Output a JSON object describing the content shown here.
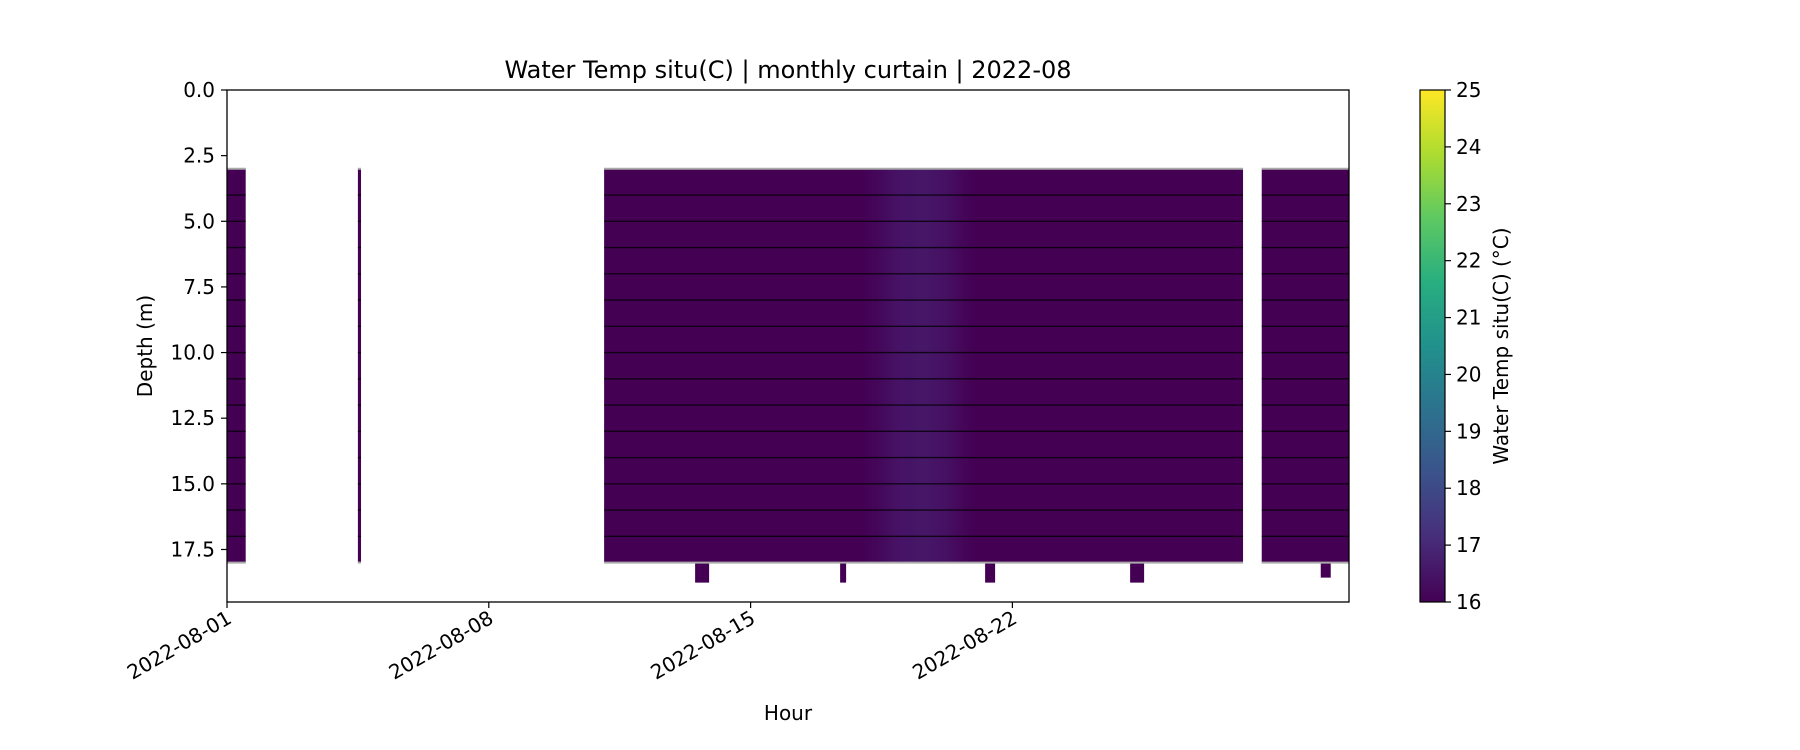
{
  "chart_data": {
    "type": "heatmap",
    "title": "Water Temp situ(C) | monthly curtain | 2022-08",
    "xlabel": "Hour",
    "ylabel": "Depth (m)",
    "x_range": [
      "2022-08-01",
      "2022-08-31"
    ],
    "y_range": [
      0,
      19.5
    ],
    "y_inverted": true,
    "xticks": [
      "2022-08-01",
      "2022-08-08",
      "2022-08-15",
      "2022-08-22"
    ],
    "yticks": [
      "0.0",
      "2.5",
      "5.0",
      "7.5",
      "10.0",
      "12.5",
      "15.0",
      "17.5"
    ],
    "colorbar": {
      "label": "Water Temp situ(C) (°C)",
      "min": 16,
      "max": 25,
      "ticks": [
        "16",
        "17",
        "18",
        "19",
        "20",
        "21",
        "22",
        "23",
        "24",
        "25"
      ],
      "colormap": "viridis"
    },
    "sample_depths_m": [
      3.0,
      4.0,
      5.0,
      6.0,
      7.0,
      8.0,
      9.0,
      10.0,
      11.0,
      12.0,
      13.0,
      14.0,
      15.0,
      16.0,
      17.0,
      18.0
    ],
    "segments": [
      {
        "start": "2022-08-01",
        "end": "2022-08-01 12:00",
        "depth_top": 3.0,
        "depth_bottom": 18.0,
        "value": 16.0
      },
      {
        "start": "2022-08-04 12:00",
        "end": "2022-08-04 14:00",
        "depth_top": 3.0,
        "depth_bottom": 18.0,
        "value": 16.0
      },
      {
        "start": "2022-08-11 02:00",
        "end": "2022-08-28 04:00",
        "depth_top": 3.0,
        "depth_bottom": 18.0,
        "value": 16.1
      },
      {
        "start": "2022-08-28 16:00",
        "end": "2022-08-31",
        "depth_top": 3.0,
        "depth_bottom": 18.0,
        "value": 16.0
      }
    ],
    "warm_band": {
      "start": "2022-08-18",
      "end": "2022-08-21",
      "value": 16.6
    },
    "series_color": "#440154",
    "grid": false
  }
}
